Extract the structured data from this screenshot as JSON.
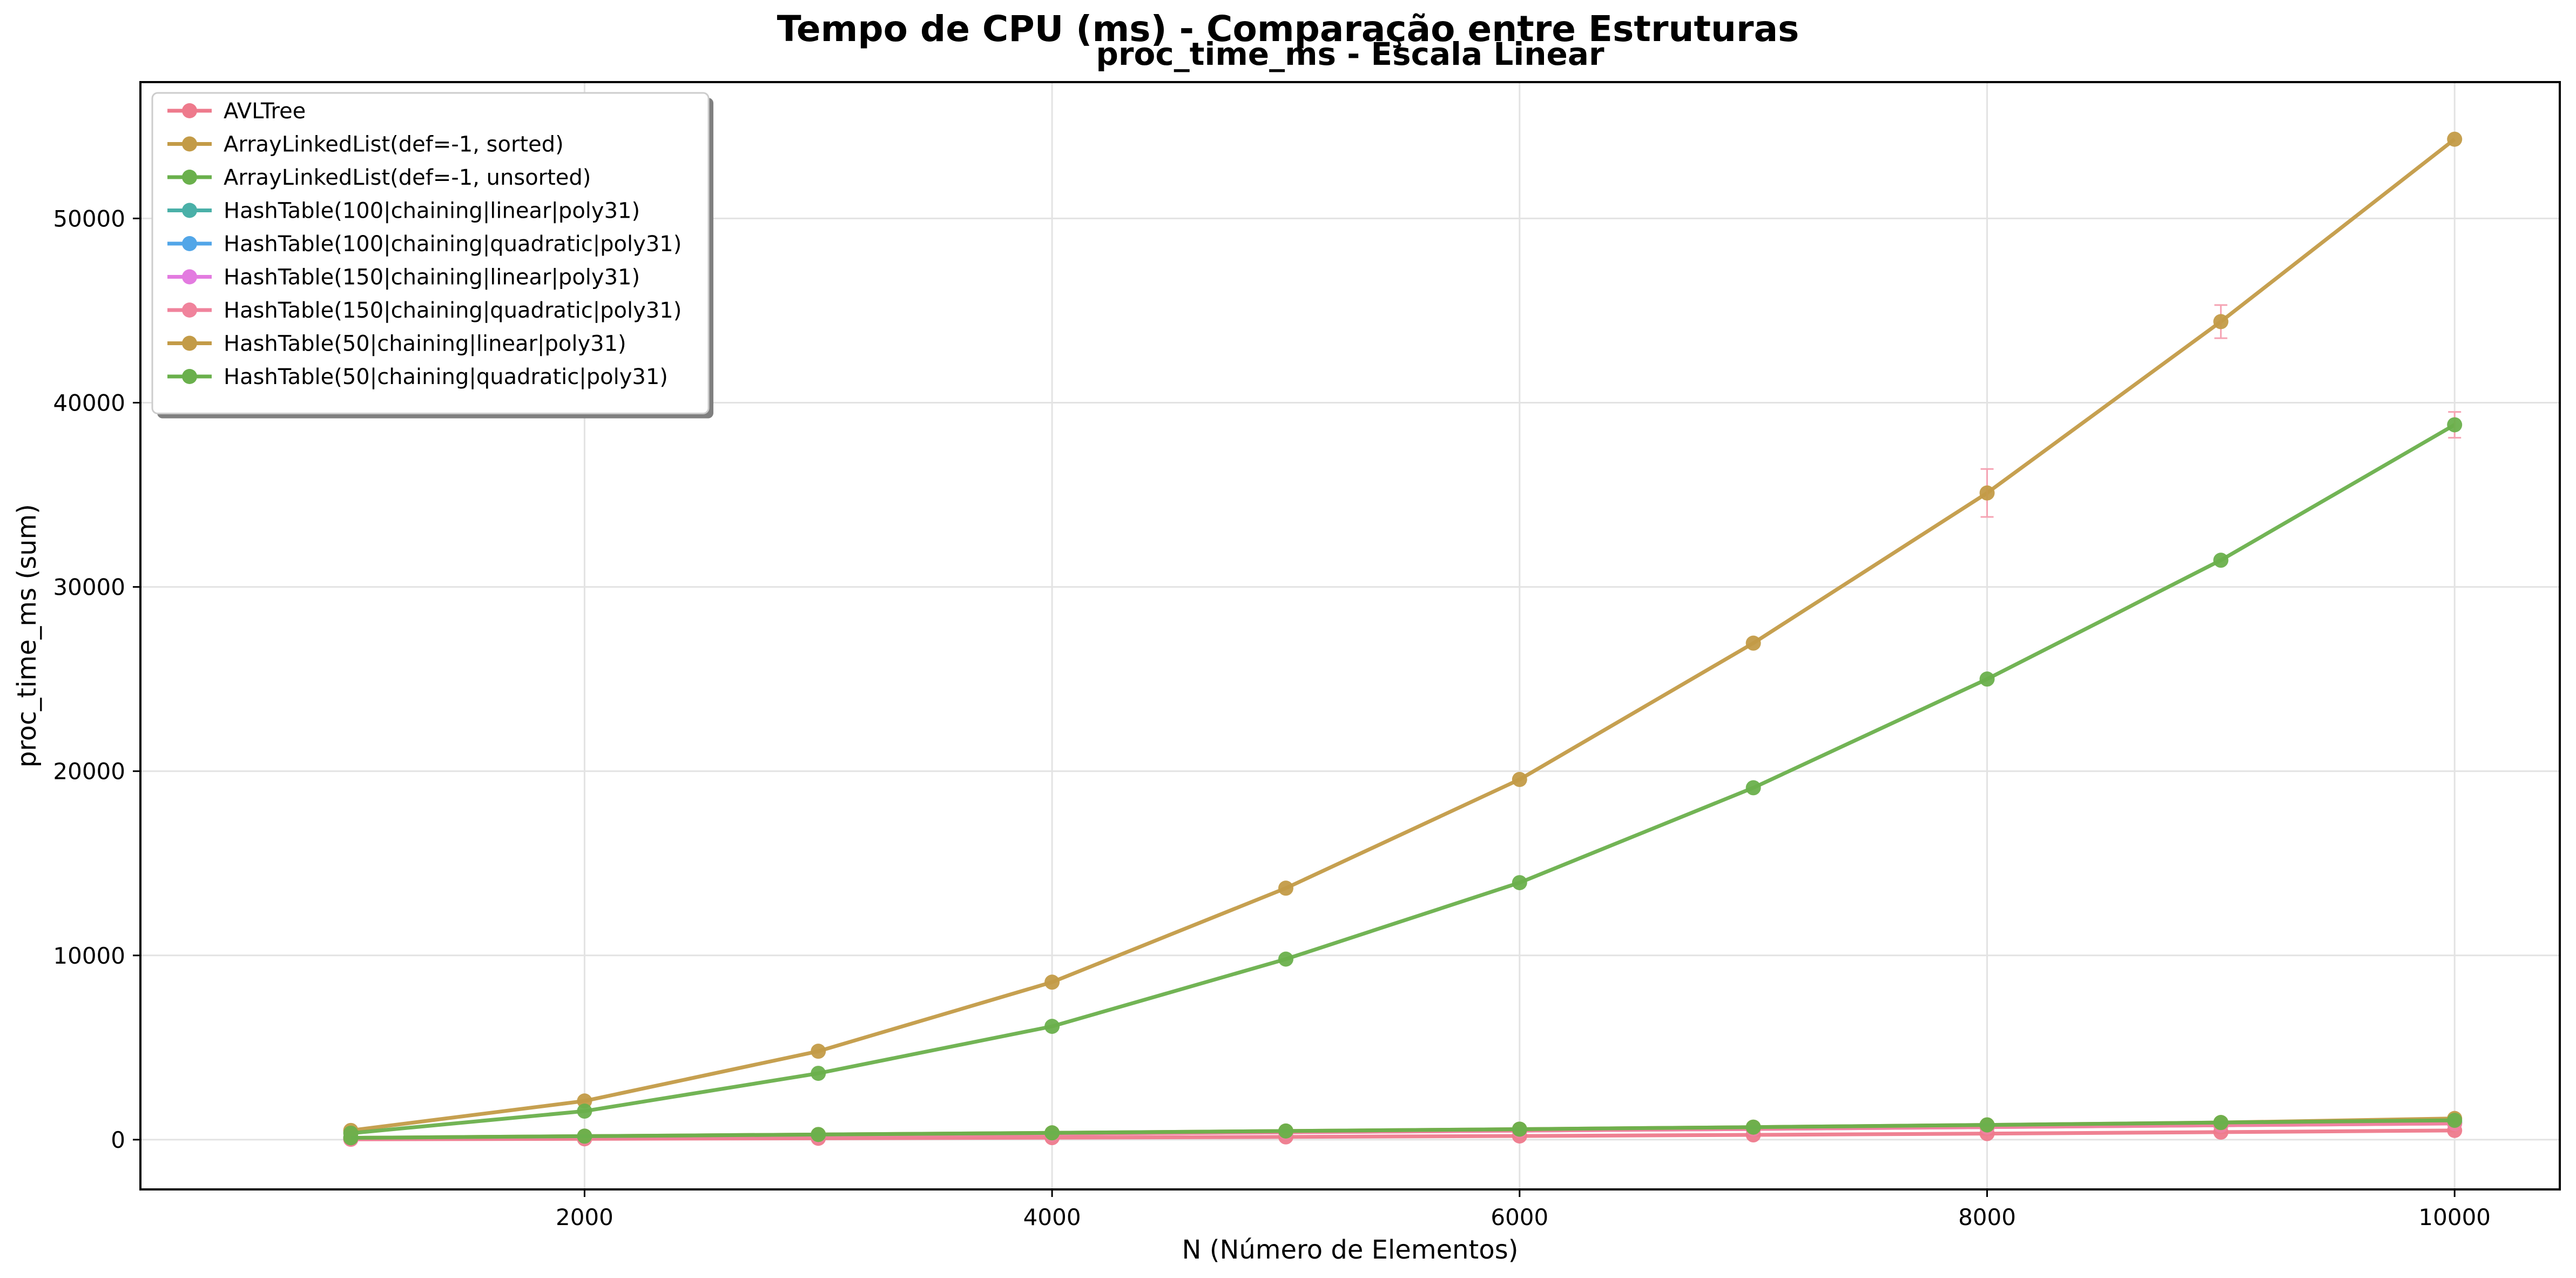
{
  "figure": {
    "suptitle": "Tempo de CPU (ms) - Comparação entre Estruturas"
  },
  "chart_data": {
    "type": "line",
    "title": "proc_time_ms - Escala Linear",
    "xlabel": "N (Número de Elementos)",
    "ylabel": "proc_time_ms (sum)",
    "xlim": [
      100,
      10450
    ],
    "ylim": [
      -2700,
      57400
    ],
    "x_ticks": [
      2000,
      4000,
      6000,
      8000,
      10000
    ],
    "y_ticks": [
      0,
      10000,
      20000,
      30000,
      40000,
      50000
    ],
    "grid": true,
    "legend_position": "upper-left",
    "x": [
      1000,
      2000,
      3000,
      4000,
      5000,
      6000,
      7000,
      8000,
      9000,
      10000
    ],
    "series": [
      {
        "name": "AVLTree",
        "color": "#ee7a8c",
        "values": [
          20,
          45,
          75,
          110,
          150,
          200,
          260,
          330,
          410,
          500
        ]
      },
      {
        "name": "ArrayLinkedList(def=-1, sorted)",
        "color": "#c39b47",
        "values": [
          500,
          2100,
          4800,
          8550,
          13650,
          19550,
          26950,
          35100,
          44400,
          54300
        ],
        "error_bars": [
          0,
          0,
          0,
          0,
          0,
          0,
          0,
          1300,
          900,
          0
        ]
      },
      {
        "name": "ArrayLinkedList(def=-1, unsorted)",
        "color": "#6ab04c",
        "values": [
          350,
          1550,
          3600,
          6150,
          9800,
          13950,
          19100,
          25000,
          31450,
          38800
        ],
        "error_bars": [
          0,
          0,
          0,
          0,
          0,
          0,
          0,
          0,
          0,
          700
        ]
      },
      {
        "name": "HashTable(100|chaining|linear|poly31)",
        "color": "#4ab0a8",
        "values": [
          80,
          160,
          240,
          330,
          420,
          510,
          610,
          720,
          830,
          950
        ]
      },
      {
        "name": "HashTable(100|chaining|quadratic|poly31)",
        "color": "#52a6e8",
        "values": [
          80,
          160,
          240,
          330,
          420,
          510,
          610,
          720,
          830,
          950
        ]
      },
      {
        "name": "HashTable(150|chaining|linear|poly31)",
        "color": "#e37be0",
        "values": [
          70,
          150,
          230,
          310,
          400,
          490,
          580,
          680,
          780,
          880
        ]
      },
      {
        "name": "HashTable(150|chaining|quadratic|poly31)",
        "color": "#f0839c",
        "values": [
          70,
          150,
          230,
          310,
          400,
          490,
          580,
          680,
          780,
          880
        ]
      },
      {
        "name": "HashTable(50|chaining|linear|poly31)",
        "color": "#c39b47",
        "values": [
          100,
          190,
          280,
          370,
          470,
          570,
          680,
          800,
          930,
          1150
        ]
      },
      {
        "name": "HashTable(50|chaining|quadratic|poly31)",
        "color": "#6ab04c",
        "values": [
          100,
          190,
          280,
          370,
          470,
          570,
          680,
          800,
          930,
          1050
        ]
      }
    ]
  }
}
